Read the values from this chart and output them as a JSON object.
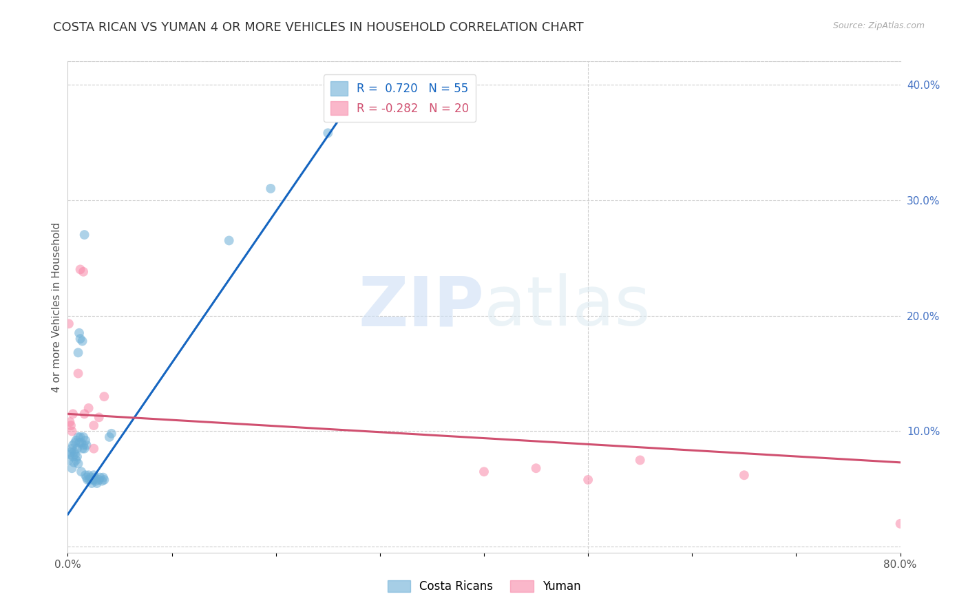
{
  "title": "COSTA RICAN VS YUMAN 4 OR MORE VEHICLES IN HOUSEHOLD CORRELATION CHART",
  "source": "Source: ZipAtlas.com",
  "ylabel": "4 or more Vehicles in Household",
  "watermark_zip": "ZIP",
  "watermark_atlas": "atlas",
  "xlim": [
    0.0,
    0.8
  ],
  "ylim": [
    -0.005,
    0.42
  ],
  "xticks": [
    0.0,
    0.1,
    0.2,
    0.3,
    0.4,
    0.5,
    0.6,
    0.7,
    0.8
  ],
  "xtick_labels": [
    "0.0%",
    "",
    "",
    "",
    "",
    "",
    "",
    "",
    "80.0%"
  ],
  "yticks_right": [
    0.0,
    0.1,
    0.2,
    0.3,
    0.4
  ],
  "ytick_labels_right": [
    "",
    "10.0%",
    "20.0%",
    "30.0%",
    "40.0%"
  ],
  "legend_label_1": "R =  0.720   N = 55",
  "legend_label_2": "R = -0.282   N = 20",
  "legend_color_1": "#6baed6",
  "legend_color_2": "#f888a8",
  "costa_rican_color": "#6baed6",
  "yuman_color": "#f888a8",
  "costa_rican_line_color": "#1565c0",
  "yuman_line_color": "#d05070",
  "costa_rican_line_start_x": 0.0,
  "costa_rican_line_start_y": 0.028,
  "costa_rican_line_end_x": 0.28,
  "costa_rican_line_end_y": 0.395,
  "yuman_line_start_x": 0.0,
  "yuman_line_start_y": 0.115,
  "yuman_line_end_x": 0.8,
  "yuman_line_end_y": 0.073,
  "costa_rican_points": [
    [
      0.001,
      0.075
    ],
    [
      0.002,
      0.08
    ],
    [
      0.003,
      0.082
    ],
    [
      0.004,
      0.068
    ],
    [
      0.004,
      0.085
    ],
    [
      0.005,
      0.078
    ],
    [
      0.005,
      0.088
    ],
    [
      0.006,
      0.073
    ],
    [
      0.006,
      0.082
    ],
    [
      0.007,
      0.08
    ],
    [
      0.007,
      0.09
    ],
    [
      0.008,
      0.075
    ],
    [
      0.008,
      0.092
    ],
    [
      0.009,
      0.085
    ],
    [
      0.009,
      0.078
    ],
    [
      0.01,
      0.072
    ],
    [
      0.01,
      0.095
    ],
    [
      0.01,
      0.168
    ],
    [
      0.011,
      0.185
    ],
    [
      0.011,
      0.09
    ],
    [
      0.012,
      0.095
    ],
    [
      0.012,
      0.18
    ],
    [
      0.013,
      0.065
    ],
    [
      0.013,
      0.09
    ],
    [
      0.014,
      0.085
    ],
    [
      0.014,
      0.178
    ],
    [
      0.015,
      0.088
    ],
    [
      0.015,
      0.095
    ],
    [
      0.016,
      0.27
    ],
    [
      0.016,
      0.085
    ],
    [
      0.017,
      0.092
    ],
    [
      0.017,
      0.062
    ],
    [
      0.018,
      0.088
    ],
    [
      0.018,
      0.06
    ],
    [
      0.019,
      0.058
    ],
    [
      0.02,
      0.062
    ],
    [
      0.021,
      0.058
    ],
    [
      0.022,
      0.06
    ],
    [
      0.023,
      0.055
    ],
    [
      0.024,
      0.058
    ],
    [
      0.025,
      0.062
    ],
    [
      0.025,
      0.058
    ],
    [
      0.026,
      0.06
    ],
    [
      0.027,
      0.057
    ],
    [
      0.028,
      0.055
    ],
    [
      0.03,
      0.058
    ],
    [
      0.031,
      0.06
    ],
    [
      0.033,
      0.057
    ],
    [
      0.034,
      0.06
    ],
    [
      0.035,
      0.058
    ],
    [
      0.04,
      0.095
    ],
    [
      0.042,
      0.098
    ],
    [
      0.155,
      0.265
    ],
    [
      0.195,
      0.31
    ],
    [
      0.25,
      0.358
    ]
  ],
  "yuman_points": [
    [
      0.001,
      0.193
    ],
    [
      0.002,
      0.108
    ],
    [
      0.003,
      0.105
    ],
    [
      0.004,
      0.1
    ],
    [
      0.005,
      0.115
    ],
    [
      0.01,
      0.15
    ],
    [
      0.012,
      0.24
    ],
    [
      0.015,
      0.238
    ],
    [
      0.016,
      0.115
    ],
    [
      0.02,
      0.12
    ],
    [
      0.025,
      0.105
    ],
    [
      0.025,
      0.085
    ],
    [
      0.03,
      0.112
    ],
    [
      0.035,
      0.13
    ],
    [
      0.4,
      0.065
    ],
    [
      0.45,
      0.068
    ],
    [
      0.5,
      0.058
    ],
    [
      0.55,
      0.075
    ],
    [
      0.65,
      0.062
    ],
    [
      0.8,
      0.02
    ]
  ],
  "background_color": "#ffffff",
  "grid_color": "#cccccc",
  "title_fontsize": 13,
  "axis_label_fontsize": 11,
  "tick_fontsize": 11,
  "right_tick_color": "#4472c4",
  "legend_text_color_1": "#1565c0",
  "legend_text_color_2": "#d05070"
}
